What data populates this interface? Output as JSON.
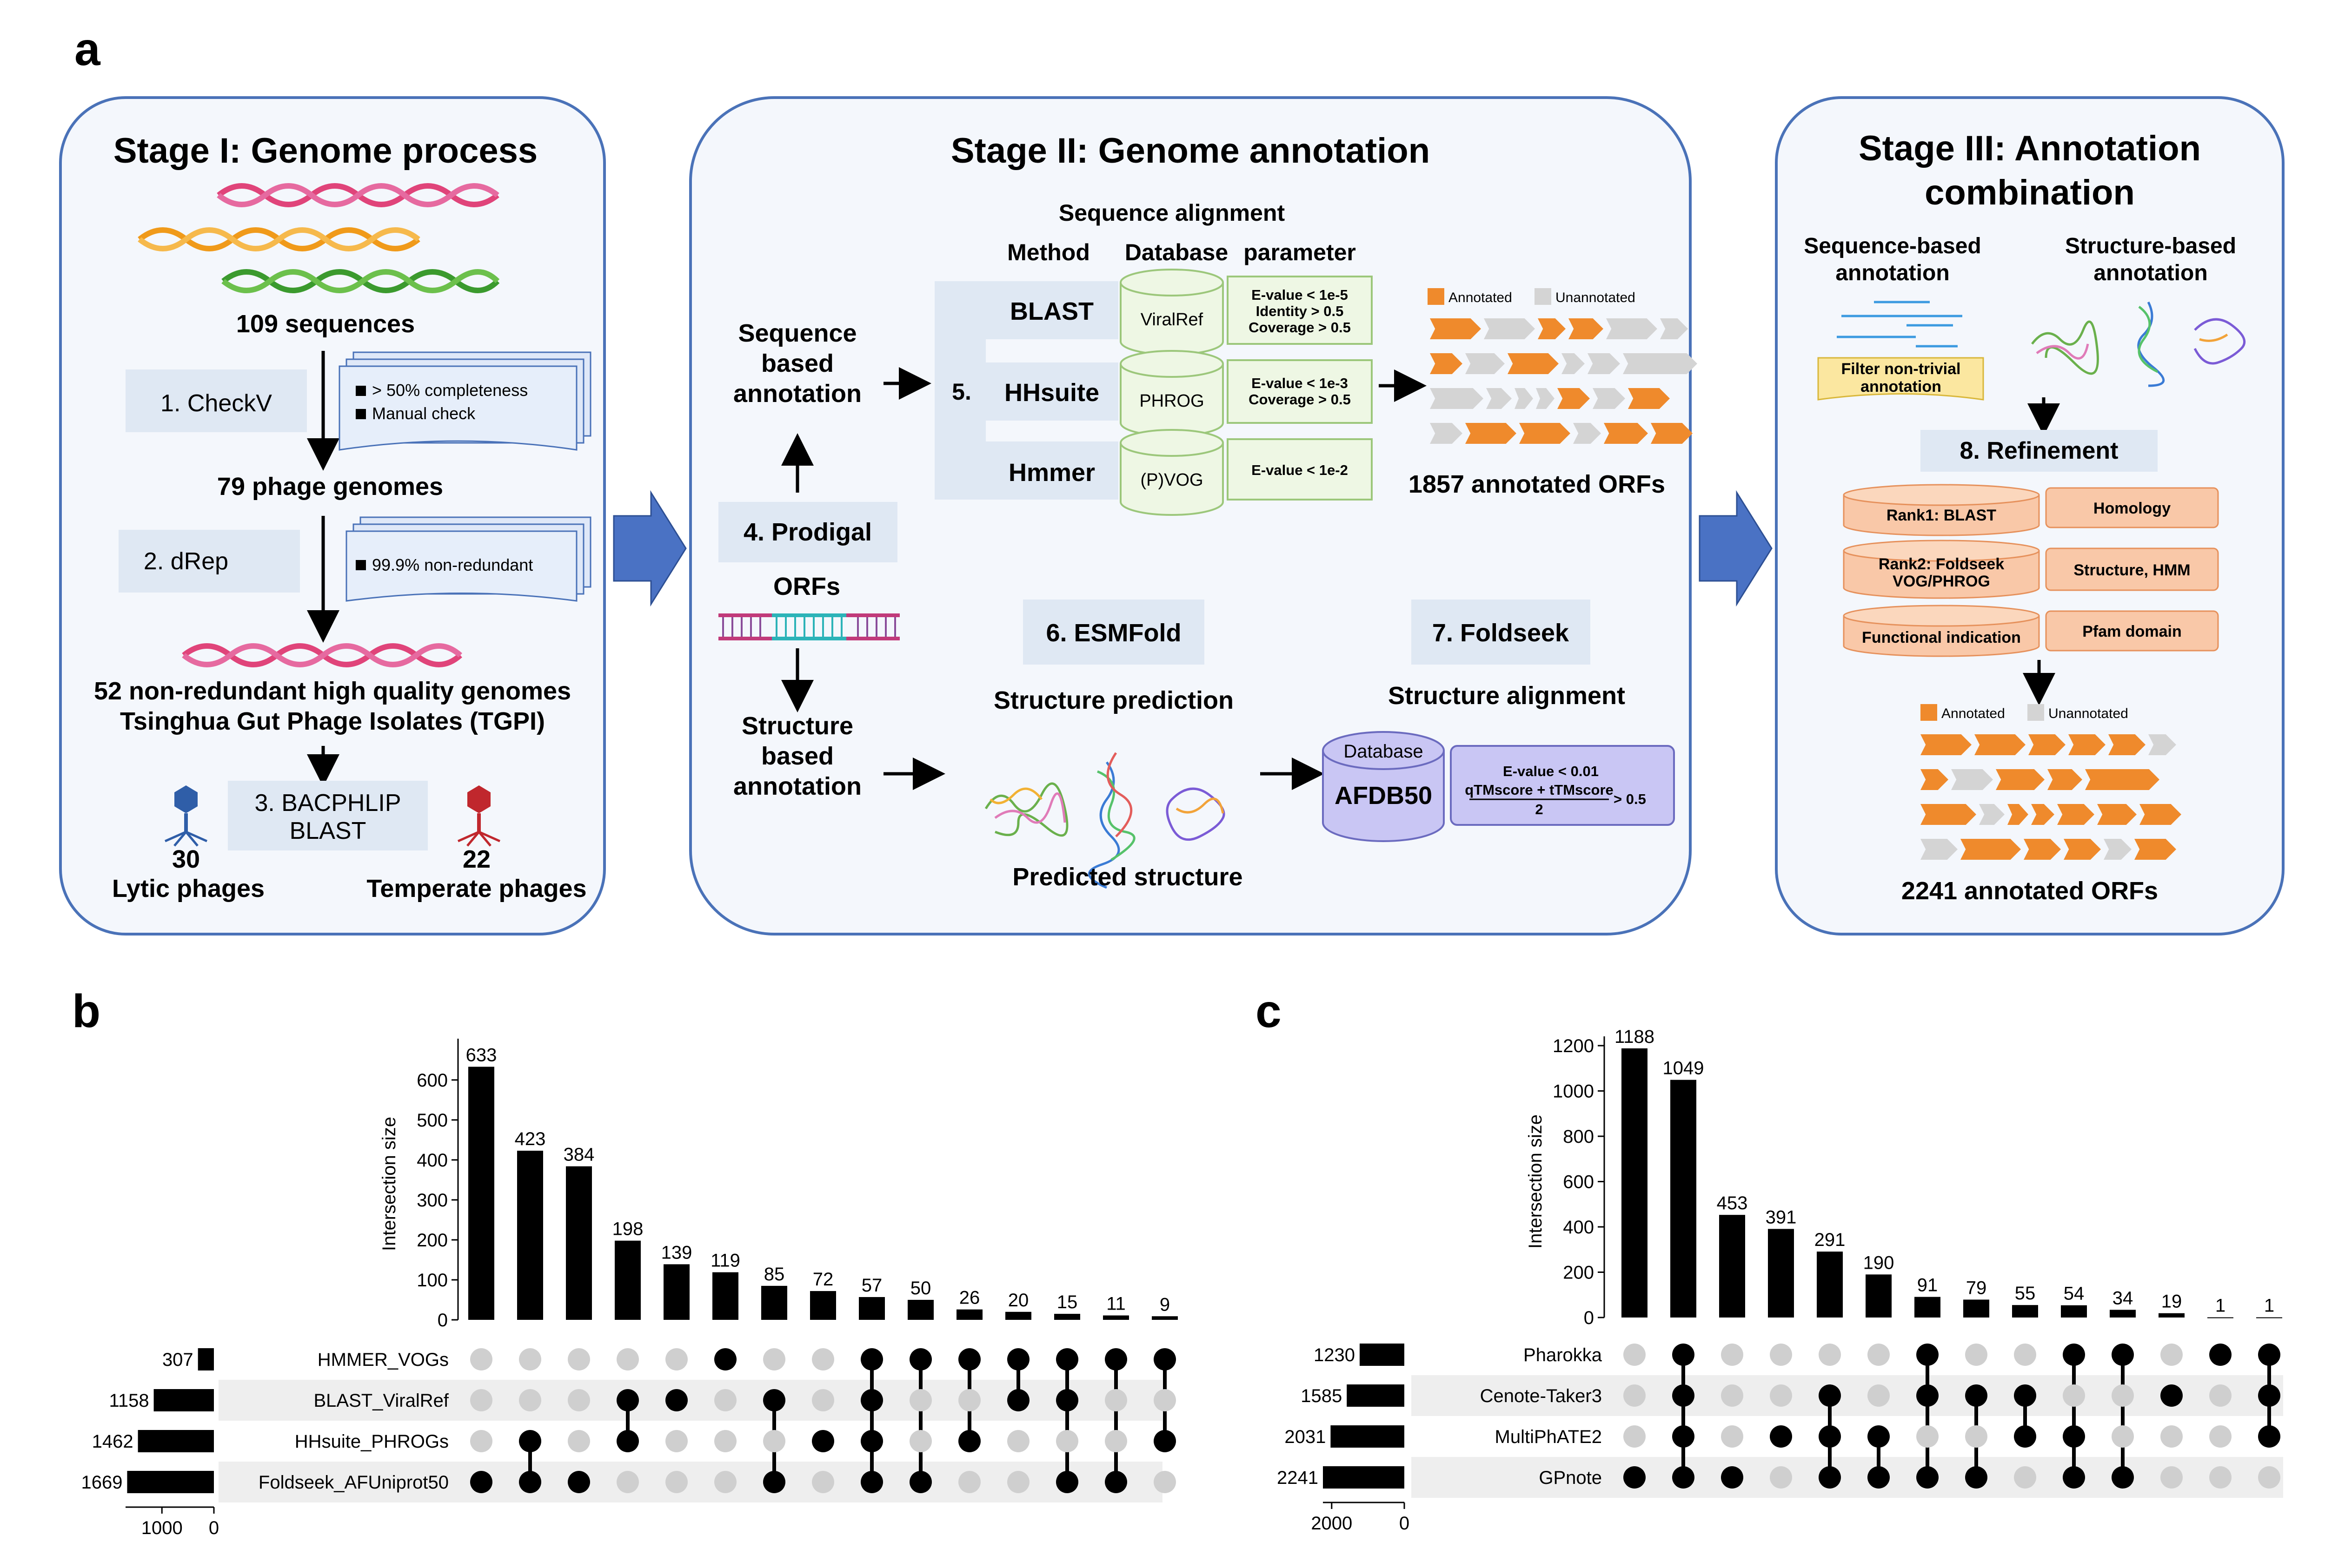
{
  "panel_a": {
    "letter": "a",
    "stage1": {
      "title": "Stage I: Genome process",
      "sequences": "109 sequences",
      "step1": "1. CheckV",
      "checkv_notes": [
        "> 50% completeness",
        "Manual check"
      ],
      "phage_genomes": "79 phage genomes",
      "step2": "2. dRep",
      "drep_note": "99.9% non-redundant",
      "genomes_line1": "52 non-redundant high quality genomes",
      "genomes_line2": "Tsinghua Gut Phage Isolates (TGPI)",
      "step3_line1": "3. BACPHLIP",
      "step3_line2": "BLAST",
      "lytic_count": "30",
      "lytic_label": "Lytic phages",
      "temperate_count": "22",
      "temperate_label": "Temperate phages"
    },
    "stage2": {
      "title": "Stage II: Genome annotation",
      "seq_alignment": "Sequence alignment",
      "col_method": "Method",
      "col_database": "Database",
      "col_parameter": "parameter",
      "seq_based": [
        "Sequence",
        "based",
        "annotation"
      ],
      "step5": "5.",
      "methods": [
        {
          "name": "BLAST",
          "db": "ViralRef",
          "params": [
            "E-value < 1e-5",
            "Identity > 0.5",
            "Coverage > 0.5"
          ]
        },
        {
          "name": "HHsuite",
          "db": "PHROG",
          "params": [
            "E-value < 1e-3",
            "Coverage > 0.5"
          ]
        },
        {
          "name": "Hmmer",
          "db": "(P)VOG",
          "params": [
            "E-value < 1e-2"
          ]
        }
      ],
      "legend_annotated": "Annotated",
      "legend_unannotated": "Unannotated",
      "orfs_count": "1857 annotated ORFs",
      "step4": "4. Prodigal",
      "orfs": "ORFs",
      "struct_based": [
        "Structure",
        "based",
        "annotation"
      ],
      "step6": "6. ESMFold",
      "struct_pred": "Structure prediction",
      "pred_struct": "Predicted structure",
      "step7": "7. Foldseek",
      "struct_align": "Structure alignment",
      "db_label": "Database",
      "db_name": "AFDB50",
      "fs_evalue": "E-value < 0.01",
      "fs_frac_num": "qTMscore + tTMscore",
      "fs_frac_den": "2",
      "fs_gt": "> 0.5"
    },
    "stage3": {
      "title_line1": "Stage III: Annotation",
      "title_line2": "combination",
      "seq_anno": [
        "Sequence-based",
        "annotation"
      ],
      "struct_anno": [
        "Structure-based",
        "annotation"
      ],
      "filter": [
        "Filter non-trivial",
        "annotation"
      ],
      "step8": "8. Refinement",
      "ranks": [
        {
          "left": [
            "Rank1: BLAST"
          ],
          "right": "Homology"
        },
        {
          "left": [
            "Rank2: Foldseek",
            "VOG/PHROG"
          ],
          "right": "Structure, HMM"
        },
        {
          "left": [
            "Functional indication"
          ],
          "right": "Pfam domain"
        }
      ],
      "legend_annotated": "Annotated",
      "legend_unannotated": "Unannotated",
      "orfs_count": "2241 annotated ORFs"
    },
    "colors": {
      "border": "#4a72b8",
      "stage_bg": "#f4f7fc",
      "step_bg": "#dfe8f3",
      "orange": "#ef8a2c",
      "gray": "#d4d4d4",
      "arrow_blue": "#4a72c4"
    }
  },
  "panel_b": {
    "letter": "b",
    "chart_data": {
      "type": "bar",
      "ylabel": "Intersection size",
      "ylim": [
        0,
        680
      ],
      "yticks": [
        0,
        100,
        200,
        300,
        400,
        500,
        600
      ],
      "values": [
        633,
        423,
        384,
        198,
        139,
        119,
        85,
        72,
        57,
        50,
        26,
        20,
        15,
        11,
        9
      ],
      "sets": [
        "HMMER_VOGs",
        "BLAST_ViralRef",
        "HHsuite_PHROGs",
        "Foldseek_AFUniprot50"
      ],
      "set_sizes": [
        307,
        1158,
        1462,
        1669
      ],
      "set_axis_ticks": [
        1000,
        0
      ],
      "set_axis_max": 1700,
      "membership": [
        [
          3
        ],
        [
          2,
          3
        ],
        [
          3
        ],
        [
          1,
          2
        ],
        [
          1
        ],
        [
          0
        ],
        [
          1,
          3
        ],
        [
          2
        ],
        [
          0,
          1,
          2,
          3
        ],
        [
          0,
          3
        ],
        [
          0,
          2
        ],
        [
          0,
          1
        ],
        [
          0,
          1,
          3
        ],
        [
          0,
          3
        ],
        [
          0,
          2
        ]
      ]
    }
  },
  "panel_c": {
    "letter": "c",
    "chart_data": {
      "type": "bar",
      "ylabel": "Intersection size",
      "ylim": [
        0,
        1200
      ],
      "yticks": [
        0,
        200,
        400,
        600,
        800,
        1000,
        1200
      ],
      "values": [
        1188,
        1049,
        453,
        391,
        291,
        190,
        91,
        79,
        55,
        54,
        34,
        19,
        1,
        1
      ],
      "sets": [
        "Pharokka",
        "Cenote-Taker3",
        "MultiPhATE2",
        "GPnote"
      ],
      "set_sizes": [
        1230,
        1585,
        2031,
        2241
      ],
      "set_axis_ticks": [
        2000,
        0
      ],
      "set_axis_max": 2241,
      "membership": [
        [
          3
        ],
        [
          0,
          1,
          2,
          3
        ],
        [
          3
        ],
        [
          2
        ],
        [
          1,
          2,
          3
        ],
        [
          2,
          3
        ],
        [
          0,
          1,
          3
        ],
        [
          1,
          3
        ],
        [
          1,
          2
        ],
        [
          0,
          2,
          3
        ],
        [
          0,
          3
        ],
        [
          1
        ],
        [
          0
        ],
        [
          0,
          1,
          2
        ]
      ]
    }
  }
}
